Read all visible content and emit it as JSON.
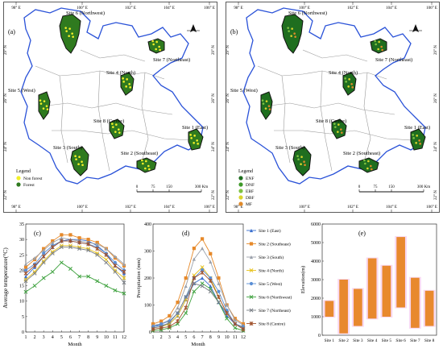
{
  "maps": [
    {
      "panel_label": "(a)",
      "lon_ticks": [
        "98° E",
        "100° E",
        "102° E",
        "104° E",
        "106° E"
      ],
      "lat_ticks": [
        "29° N",
        "28° N",
        "26° N",
        "24° N",
        "22° N"
      ],
      "sites": [
        {
          "id": "s6",
          "label": "Site 6 (Northwest)"
        },
        {
          "id": "s7",
          "label": "Site 7 (Northeast)"
        },
        {
          "id": "s4",
          "label": "Site 4 (North)"
        },
        {
          "id": "s5",
          "label": "Site 5 (West)"
        },
        {
          "id": "s8",
          "label": "Site 8 (Centre)"
        },
        {
          "id": "s1",
          "label": "Site 1 (East)"
        },
        {
          "id": "s3",
          "label": "Site 3 (South)"
        },
        {
          "id": "s2",
          "label": "Site 2 (Southeast)"
        }
      ],
      "legend_title": "Legend",
      "legend": [
        {
          "label": "Non forest",
          "color": "#f2f028"
        },
        {
          "label": "Forest",
          "color": "#2f7a1f"
        }
      ],
      "scale_labels": [
        "0",
        "75",
        "150",
        "300 Km"
      ]
    },
    {
      "panel_label": "(b)",
      "lon_ticks": [
        "98° E",
        "100° E",
        "102° E",
        "104° E",
        "106° E"
      ],
      "lat_ticks": [
        "29° N",
        "28° N",
        "26° N",
        "24° N",
        "22° N"
      ],
      "sites": [
        {
          "id": "s6",
          "label": "Site 6 (Northwest)"
        },
        {
          "id": "s7",
          "label": "Site 7 (Northeast)"
        },
        {
          "id": "s4",
          "label": "Site 4 (North)"
        },
        {
          "id": "s5",
          "label": "Site 5 (West)"
        },
        {
          "id": "s8",
          "label": "Site 8 (Centre)"
        },
        {
          "id": "s1",
          "label": "Site 1 (East)"
        },
        {
          "id": "s3",
          "label": "Site 3 (South)"
        },
        {
          "id": "s2",
          "label": "Site 2 (Southeast)"
        }
      ],
      "legend_title": "Legend",
      "legend": [
        {
          "label": "ENF",
          "color": "#1f6e1f"
        },
        {
          "label": "DNF",
          "color": "#3f9a2a"
        },
        {
          "label": "EBF",
          "color": "#7fc241"
        },
        {
          "label": "DBF",
          "color": "#d9d42c"
        },
        {
          "label": "MF",
          "color": "#e08a2a"
        }
      ],
      "scale_labels": [
        "0",
        "75",
        "150",
        "300 Km"
      ]
    }
  ],
  "chart_data": [
    {
      "panel_label": "(c)",
      "type": "line",
      "xlabel": "Month",
      "ylabel": "Average temperature(°C)",
      "x": [
        1,
        2,
        3,
        4,
        5,
        6,
        7,
        8,
        9,
        10,
        11,
        12
      ],
      "ylim": [
        0,
        35
      ],
      "yticks": [
        0,
        5,
        10,
        15,
        20,
        25,
        30,
        35
      ],
      "series": [
        {
          "key": "s1",
          "color": "#3a6fcf",
          "marker": "triangle",
          "values": [
            18,
            21,
            24.5,
            27.5,
            29.5,
            30,
            30,
            29.5,
            28,
            25.5,
            21.5,
            19
          ]
        },
        {
          "key": "s2",
          "color": "#e6892a",
          "marker": "square",
          "values": [
            21,
            23.5,
            27,
            29.5,
            31.5,
            31.5,
            30.5,
            30,
            29,
            27,
            24,
            21.5
          ]
        },
        {
          "key": "s3",
          "color": "#9aa0aa",
          "marker": "triangle",
          "values": [
            22,
            24,
            26.5,
            29,
            30.5,
            30,
            29.5,
            29,
            28.5,
            27,
            24.5,
            22
          ]
        },
        {
          "key": "s4",
          "color": "#e8c21a",
          "marker": "cross",
          "values": [
            17,
            19.5,
            23,
            26,
            28,
            28,
            27.5,
            27,
            25.5,
            23.5,
            20,
            17.5
          ]
        },
        {
          "key": "s5",
          "color": "#5a8fd6",
          "marker": "dot",
          "values": [
            20,
            22,
            25.5,
            28,
            29.5,
            29.5,
            29,
            28.5,
            27.5,
            25.5,
            22.5,
            20
          ]
        },
        {
          "key": "s6",
          "color": "#3fa23f",
          "marker": "cross",
          "values": [
            13,
            15,
            17.5,
            19.5,
            22.5,
            20.5,
            18,
            18,
            16.5,
            15,
            13.5,
            12.5
          ]
        },
        {
          "key": "s7",
          "color": "#7a7f86",
          "marker": "cross",
          "values": [
            16.5,
            19,
            22.5,
            25.5,
            27.5,
            27.5,
            27,
            26.5,
            25,
            22.5,
            19.5,
            16
          ]
        },
        {
          "key": "s8",
          "color": "#a0522d",
          "marker": "star",
          "values": [
            19,
            21.5,
            24.5,
            27.5,
            29.5,
            29.5,
            29,
            28.5,
            27,
            25,
            21.5,
            19.5
          ]
        }
      ]
    },
    {
      "panel_label": "(d)",
      "type": "line",
      "xlabel": "Month",
      "ylabel": "Precipitation (mm)",
      "x": [
        1,
        2,
        3,
        4,
        5,
        6,
        7,
        8,
        9,
        10,
        11,
        12
      ],
      "ylim": [
        0,
        400
      ],
      "yticks": [
        0,
        100,
        200,
        300,
        400
      ],
      "series": [
        {
          "key": "s1",
          "name": "Site 1 (East)",
          "color": "#3a6fcf",
          "marker": "triangle",
          "values": [
            20,
            25,
            30,
            60,
            120,
            180,
            200,
            170,
            110,
            60,
            30,
            15
          ]
        },
        {
          "key": "s2",
          "name": "Site 2 (Southeast)",
          "color": "#e6892a",
          "marker": "square",
          "values": [
            30,
            40,
            60,
            110,
            200,
            310,
            345,
            290,
            200,
            100,
            50,
            30
          ]
        },
        {
          "key": "s3",
          "name": "Site 3 (South)",
          "color": "#9aa0aa",
          "marker": "triangle",
          "values": [
            25,
            30,
            45,
            90,
            170,
            270,
            310,
            260,
            180,
            100,
            45,
            25
          ]
        },
        {
          "key": "s4",
          "name": "Site 4 (North)",
          "color": "#e8c21a",
          "marker": "cross",
          "values": [
            15,
            20,
            30,
            60,
            120,
            210,
            240,
            200,
            130,
            70,
            30,
            15
          ]
        },
        {
          "key": "s5",
          "name": "Site 5 (West)",
          "color": "#5a8fd6",
          "marker": "dot",
          "values": [
            20,
            30,
            40,
            70,
            130,
            200,
            230,
            200,
            150,
            80,
            30,
            20
          ]
        },
        {
          "key": "s6",
          "name": "Site 6 (Northwest)",
          "color": "#3fa23f",
          "marker": "cross",
          "values": [
            5,
            8,
            15,
            30,
            70,
            150,
            180,
            160,
            110,
            50,
            15,
            5
          ]
        },
        {
          "key": "s7",
          "name": "Site 7 (Northeast)",
          "color": "#7a7f86",
          "marker": "cross",
          "values": [
            15,
            20,
            35,
            70,
            130,
            180,
            170,
            150,
            110,
            70,
            30,
            15
          ]
        },
        {
          "key": "s8",
          "name": "Site 8 (Centre)",
          "color": "#a0522d",
          "marker": "star",
          "values": [
            10,
            15,
            20,
            40,
            90,
            200,
            220,
            190,
            130,
            70,
            30,
            10
          ]
        }
      ]
    },
    {
      "panel_label": "(e)",
      "type": "bar",
      "ylabel": "Elevation(m)",
      "categories": [
        "Site 1",
        "Site 2",
        "Site 3",
        "Site 4",
        "Site 5",
        "Site 6",
        "Site 7",
        "Site 8"
      ],
      "ranges": [
        [
          1000,
          1850
        ],
        [
          100,
          3000
        ],
        [
          500,
          2500
        ],
        [
          900,
          4150
        ],
        [
          1000,
          3750
        ],
        [
          1500,
          5300
        ],
        [
          400,
          3100
        ],
        [
          500,
          2400
        ]
      ],
      "ylim": [
        0,
        6000
      ],
      "yticks": [
        0,
        1000,
        2000,
        3000,
        4000,
        5000,
        6000
      ],
      "color": "#e8892e",
      "highlight": "#f2b8e6"
    }
  ]
}
